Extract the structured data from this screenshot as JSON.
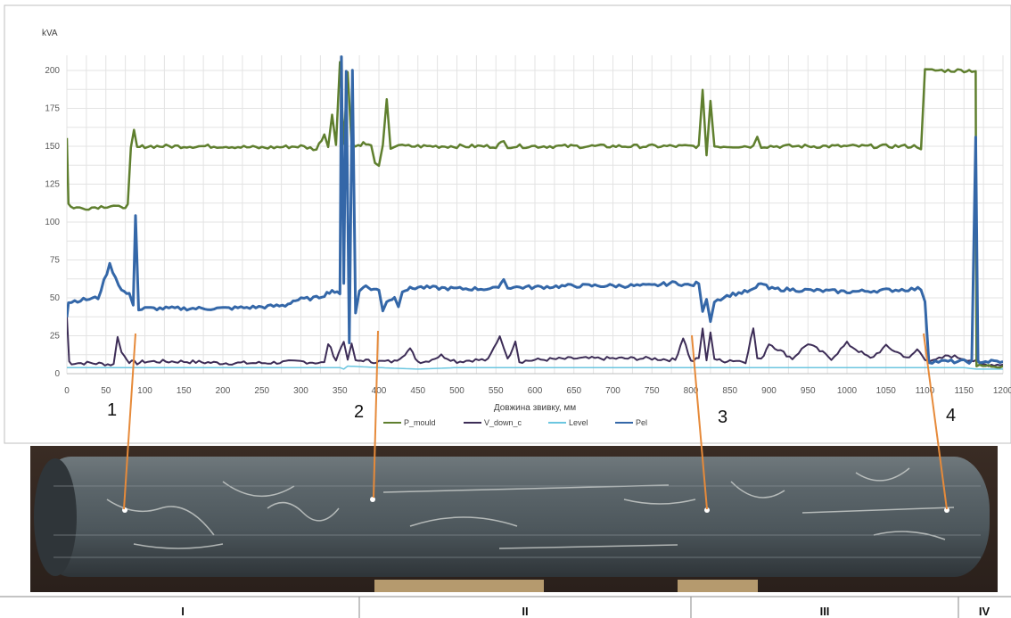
{
  "chart_data": {
    "type": "line",
    "unit_label": "kVA",
    "xlabel": "Довжина звивку, мм",
    "xlim": [
      0,
      1200
    ],
    "ylim": [
      0,
      210
    ],
    "x_ticks": [
      0,
      50,
      100,
      150,
      200,
      250,
      300,
      350,
      400,
      450,
      500,
      550,
      600,
      650,
      700,
      750,
      800,
      850,
      900,
      950,
      1000,
      1050,
      1100,
      1150,
      1200
    ],
    "y_ticks": [
      0,
      25,
      50,
      75,
      100,
      125,
      150,
      175,
      200
    ],
    "grid": true,
    "legend_position": "bottom-center",
    "series": [
      {
        "name": "P_mould",
        "color": "#5f7f2e",
        "x": [
          0,
          2,
          5,
          20,
          40,
          60,
          70,
          72,
          78,
          82,
          86,
          90,
          100,
          150,
          200,
          250,
          300,
          320,
          330,
          335,
          340,
          345,
          350,
          355,
          360,
          365,
          370,
          380,
          390,
          395,
          400,
          405,
          410,
          415,
          420,
          425,
          430,
          450,
          500,
          550,
          560,
          565,
          600,
          650,
          700,
          750,
          800,
          810,
          815,
          820,
          825,
          830,
          850,
          880,
          885,
          890,
          950,
          1000,
          1050,
          1090,
          1095,
          1100,
          1105,
          1150,
          1160,
          1165,
          1166,
          1170,
          1200
        ],
        "y": [
          156,
          112,
          110,
          109,
          110,
          111,
          109,
          110,
          111,
          148,
          160,
          149,
          150,
          150,
          150,
          149,
          150,
          148,
          158,
          150,
          172,
          151,
          205,
          152,
          200,
          151,
          150,
          152,
          150,
          140,
          136,
          150,
          180,
          149,
          150,
          151,
          150,
          150,
          150,
          150,
          153,
          150,
          150,
          150,
          150,
          150,
          150,
          150,
          186,
          145,
          180,
          150,
          150,
          150,
          157,
          150,
          150,
          150,
          150,
          150,
          149,
          200,
          200,
          200,
          200,
          200,
          5,
          5,
          5
        ]
      },
      {
        "name": "V_down_c",
        "color": "#3d2d57",
        "x": [
          0,
          3,
          6,
          30,
          60,
          65,
          70,
          80,
          90,
          100,
          150,
          200,
          250,
          300,
          330,
          335,
          345,
          355,
          360,
          365,
          370,
          380,
          390,
          400,
          420,
          430,
          440,
          450,
          460,
          480,
          500,
          520,
          540,
          555,
          560,
          565,
          575,
          580,
          600,
          650,
          700,
          750,
          780,
          790,
          800,
          810,
          815,
          820,
          825,
          830,
          840,
          850,
          870,
          880,
          885,
          890,
          900,
          930,
          950,
          980,
          1000,
          1030,
          1050,
          1080,
          1090,
          1100,
          1110,
          1130,
          1150,
          1166,
          1170,
          1200
        ],
        "y": [
          38,
          8,
          7,
          7,
          6,
          25,
          14,
          8,
          7,
          8,
          8,
          7,
          7,
          8,
          7,
          20,
          9,
          22,
          8,
          20,
          8,
          9,
          8,
          8,
          8,
          12,
          16,
          8,
          8,
          12,
          8,
          9,
          9,
          25,
          18,
          9,
          22,
          8,
          9,
          10,
          10,
          10,
          9,
          24,
          8,
          10,
          30,
          8,
          28,
          10,
          8,
          9,
          8,
          30,
          10,
          9,
          20,
          10,
          20,
          10,
          20,
          10,
          18,
          10,
          16,
          10,
          8,
          12,
          10,
          8,
          6,
          6
        ]
      },
      {
        "name": "Level",
        "color": "#6bc6e0",
        "x": [
          0,
          50,
          100,
          150,
          200,
          250,
          300,
          350,
          355,
          360,
          400,
          450,
          500,
          550,
          600,
          650,
          700,
          750,
          800,
          850,
          900,
          950,
          1000,
          1050,
          1100,
          1150,
          1166,
          1200
        ],
        "y": [
          4,
          4,
          4,
          4,
          4,
          4,
          4,
          4,
          3,
          5,
          4,
          3,
          4,
          4,
          4,
          4,
          4,
          4,
          4,
          4,
          4,
          4,
          4,
          4,
          4,
          4,
          3,
          3
        ]
      },
      {
        "name": "Pel",
        "color": "#3467a8",
        "x": [
          0,
          2,
          10,
          40,
          55,
          70,
          80,
          85,
          88,
          92,
          100,
          150,
          200,
          250,
          280,
          290,
          300,
          320,
          330,
          340,
          350,
          352,
          355,
          358,
          362,
          366,
          370,
          375,
          380,
          390,
          400,
          405,
          410,
          420,
          425,
          430,
          440,
          450,
          500,
          550,
          560,
          565,
          600,
          650,
          700,
          750,
          780,
          800,
          810,
          815,
          820,
          825,
          830,
          850,
          880,
          890,
          900,
          950,
          1000,
          1050,
          1095,
          1100,
          1105,
          1150,
          1160,
          1165,
          1168,
          1170,
          1200
        ],
        "y": [
          38,
          47,
          48,
          50,
          72,
          55,
          52,
          46,
          105,
          42,
          43,
          43,
          43,
          44,
          45,
          48,
          49,
          50,
          52,
          55,
          52,
          210,
          60,
          200,
          20,
          200,
          40,
          55,
          58,
          56,
          55,
          42,
          48,
          50,
          45,
          55,
          56,
          57,
          56,
          56,
          62,
          57,
          57,
          58,
          58,
          58,
          60,
          58,
          60,
          40,
          50,
          35,
          48,
          52,
          55,
          60,
          56,
          55,
          54,
          55,
          56,
          48,
          8,
          8,
          8,
          155,
          8,
          8,
          8
        ]
      }
    ],
    "annotations": [
      "1",
      "2",
      "3",
      "4"
    ],
    "sections": [
      "I",
      "II",
      "III",
      "IV"
    ]
  }
}
